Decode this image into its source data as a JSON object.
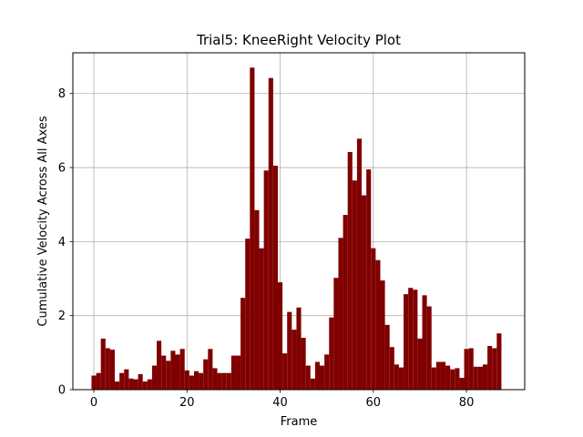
{
  "chart_data": {
    "type": "bar",
    "title": "Trial5: KneeRight Velocity Plot",
    "xlabel": "Frame",
    "ylabel": "Cumulative Velocity Across All Axes",
    "xlim": [
      -4.5,
      92.5
    ],
    "ylim": [
      0,
      9.1
    ],
    "x_ticks": [
      0,
      20,
      40,
      60,
      80
    ],
    "y_ticks": [
      0,
      2,
      4,
      6,
      8
    ],
    "grid": true,
    "bar_color": "#800000",
    "x": [
      0,
      1,
      2,
      3,
      4,
      5,
      6,
      7,
      8,
      9,
      10,
      11,
      12,
      13,
      14,
      15,
      16,
      17,
      18,
      19,
      20,
      21,
      22,
      23,
      24,
      25,
      26,
      27,
      28,
      29,
      30,
      31,
      32,
      33,
      34,
      35,
      36,
      37,
      38,
      39,
      40,
      41,
      42,
      43,
      44,
      45,
      46,
      47,
      48,
      49,
      50,
      51,
      52,
      53,
      54,
      55,
      56,
      57,
      58,
      59,
      60,
      61,
      62,
      63,
      64,
      65,
      66,
      67,
      68,
      69,
      70,
      71,
      72,
      73,
      74,
      75,
      76,
      77,
      78,
      79,
      80,
      81,
      82,
      83,
      84,
      85,
      86,
      87,
      88
    ],
    "values": [
      0.38,
      0.45,
      1.38,
      1.12,
      1.08,
      0.22,
      0.45,
      0.55,
      0.3,
      0.28,
      0.42,
      0.22,
      0.28,
      0.65,
      1.32,
      0.92,
      0.78,
      1.05,
      0.95,
      1.1,
      0.52,
      0.38,
      0.5,
      0.45,
      0.82,
      1.1,
      0.58,
      0.45,
      0.45,
      0.45,
      0.92,
      0.92,
      2.48,
      4.08,
      8.7,
      4.85,
      3.82,
      5.92,
      8.42,
      6.05,
      2.9,
      0.98,
      2.1,
      1.62,
      2.22,
      1.4,
      0.65,
      0.3,
      0.75,
      0.65,
      0.95,
      1.95,
      3.02,
      4.1,
      4.72,
      6.42,
      5.65,
      6.78,
      5.25,
      5.95,
      3.82,
      3.5,
      2.95,
      1.75,
      1.15,
      0.68,
      0.6,
      2.58,
      2.75,
      2.7,
      1.38,
      2.55,
      2.25,
      0.6,
      0.75,
      0.75,
      0.65,
      0.55,
      0.58,
      0.32,
      1.1,
      1.12,
      0.62,
      0.62,
      0.68,
      1.18,
      1.12,
      1.52,
      0.0
    ]
  }
}
